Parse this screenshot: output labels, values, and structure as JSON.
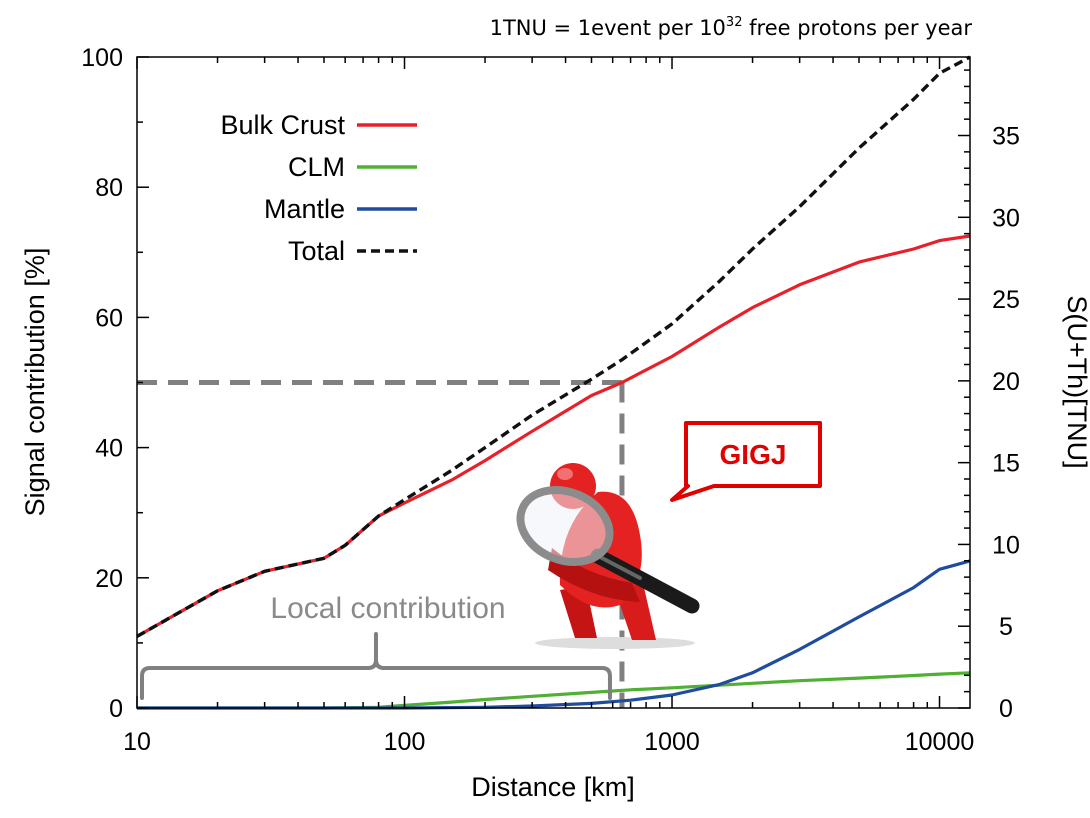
{
  "header": {
    "note_prefix": "1TNU = 1event per 10",
    "note_exp": "32",
    "note_suffix": " free protons per year"
  },
  "colors": {
    "bulk_crust": "#e8202a",
    "clm": "#4fb033",
    "mantle": "#1f4c9e",
    "total": "#111111",
    "guide": "#808080",
    "callout": "#e00000"
  },
  "icons": {
    "mascot": "red-figure-with-magnifying-glass-icon"
  },
  "chart_data": {
    "type": "line",
    "xlabel": "Distance [km]",
    "ylabel": "Signal contribution [%]",
    "y2label": "S(U+Th)[TNU]",
    "xscale": "log",
    "xlim": [
      10,
      13000
    ],
    "ylim": [
      0,
      100
    ],
    "y2lim": [
      0,
      39.8
    ],
    "xticks": [
      10,
      100,
      1000,
      10000
    ],
    "xtick_labels": [
      "10",
      "100",
      "1000",
      "10000"
    ],
    "yticks": [
      0,
      20,
      40,
      60,
      80,
      100
    ],
    "ytick_labels": [
      "0",
      "20",
      "40",
      "60",
      "80",
      "100"
    ],
    "y2ticks": [
      0,
      5,
      10,
      15,
      20,
      25,
      30,
      35
    ],
    "y2tick_labels": [
      "0",
      "5",
      "10",
      "15",
      "20",
      "25",
      "30",
      "35"
    ],
    "legend_position": "top-left",
    "series": [
      {
        "name": "Bulk Crust",
        "key": "bulk_crust",
        "style": "solid",
        "x": [
          10,
          20,
          30,
          50,
          60,
          80,
          100,
          150,
          200,
          300,
          500,
          650,
          1000,
          1500,
          2000,
          3000,
          5000,
          8000,
          10000,
          13000
        ],
        "values": [
          11,
          18,
          21,
          23,
          25,
          29.5,
          31.5,
          35,
          38,
          42.5,
          48,
          50,
          54,
          58.5,
          61.5,
          65,
          68.5,
          70.5,
          71.8,
          72.5
        ]
      },
      {
        "name": "CLM",
        "key": "clm",
        "style": "solid",
        "x": [
          10,
          50,
          80,
          100,
          150,
          200,
          300,
          500,
          700,
          1000,
          1500,
          2000,
          3000,
          5000,
          8000,
          10000,
          13000
        ],
        "values": [
          0,
          0,
          0.1,
          0.4,
          0.9,
          1.3,
          1.8,
          2.4,
          2.8,
          3.1,
          3.5,
          3.8,
          4.2,
          4.6,
          5.0,
          5.2,
          5.4
        ]
      },
      {
        "name": "Mantle",
        "key": "mantle",
        "style": "solid",
        "x": [
          10,
          100,
          200,
          300,
          500,
          700,
          1000,
          1500,
          2000,
          3000,
          5000,
          8000,
          10000,
          13000
        ],
        "values": [
          0,
          0,
          0.1,
          0.3,
          0.7,
          1.2,
          2.0,
          3.6,
          5.4,
          9.0,
          14.0,
          18.5,
          21.3,
          22.6
        ]
      },
      {
        "name": "Total",
        "key": "total",
        "style": "dashed",
        "x": [
          10,
          20,
          30,
          50,
          60,
          80,
          100,
          150,
          200,
          300,
          500,
          650,
          1000,
          1500,
          2000,
          3000,
          5000,
          8000,
          10000,
          13000
        ],
        "values": [
          11,
          18,
          21,
          23,
          25,
          29.5,
          32,
          36.5,
          40,
          45,
          50.5,
          53.5,
          59,
          65.5,
          70.5,
          77,
          86,
          93.5,
          97.5,
          100
        ]
      }
    ],
    "annotations": {
      "guide_point": {
        "x": 650,
        "y": 50
      },
      "local_range": [
        10,
        650
      ],
      "local_label": "Local contribution",
      "callout_label": "GIGJ"
    }
  }
}
